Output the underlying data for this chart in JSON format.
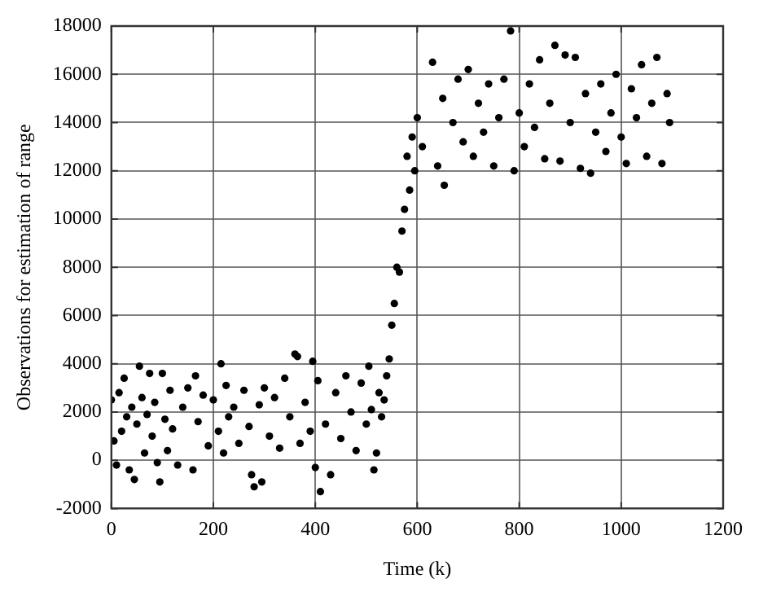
{
  "chart_data": {
    "type": "scatter",
    "xlabel": "Time (k)",
    "ylabel": "Observations for estimation of range",
    "xlim": [
      0,
      1200
    ],
    "xticks": [
      0,
      200,
      400,
      600,
      800,
      1000,
      1200
    ],
    "ylim": [
      -2000,
      18000
    ],
    "yticks": [
      -2000,
      0,
      2000,
      4000,
      6000,
      8000,
      10000,
      12000,
      14000,
      16000,
      18000
    ],
    "grid": true,
    "legend": false,
    "marker": "circle",
    "series": [
      {
        "color": "#000000",
        "x": [
          0,
          5,
          10,
          15,
          20,
          25,
          30,
          35,
          40,
          45,
          50,
          55,
          60,
          65,
          70,
          75,
          80,
          85,
          90,
          95,
          100,
          105,
          110,
          115,
          120,
          130,
          140,
          150,
          160,
          165,
          170,
          180,
          190,
          200,
          210,
          215,
          220,
          225,
          230,
          240,
          250,
          260,
          270,
          275,
          280,
          290,
          295,
          300,
          310,
          320,
          330,
          340,
          350,
          360,
          365,
          370,
          380,
          390,
          395,
          400,
          405,
          410,
          420,
          430,
          440,
          450,
          460,
          470,
          480,
          490,
          500,
          505,
          510,
          515,
          520,
          525,
          530,
          535,
          540,
          545,
          550,
          555,
          560,
          565,
          570,
          575,
          580,
          585,
          590,
          595,
          600,
          610,
          630,
          640,
          650,
          653,
          670,
          680,
          690,
          700,
          710,
          720,
          730,
          740,
          750,
          760,
          770,
          783,
          790,
          800,
          810,
          820,
          830,
          840,
          850,
          860,
          870,
          880,
          890,
          900,
          910,
          920,
          930,
          940,
          950,
          960,
          970,
          980,
          990,
          1000,
          1010,
          1020,
          1030,
          1040,
          1050,
          1060,
          1070,
          1080,
          1090,
          1095
        ],
        "values": [
          2500,
          800,
          -200,
          2800,
          1200,
          3400,
          1800,
          -400,
          2200,
          -800,
          1500,
          3900,
          2600,
          300,
          1900,
          3600,
          1000,
          2400,
          -100,
          -900,
          3600,
          1700,
          400,
          2900,
          1300,
          -200,
          2200,
          3000,
          -400,
          3500,
          1600,
          2700,
          600,
          2500,
          1200,
          4000,
          300,
          3100,
          1800,
          2200,
          700,
          2900,
          1400,
          -600,
          -1100,
          2300,
          -900,
          3000,
          1000,
          2600,
          500,
          3400,
          1800,
          4400,
          4300,
          700,
          2400,
          1200,
          4100,
          -300,
          3300,
          -1300,
          1500,
          -600,
          2800,
          900,
          3500,
          2000,
          400,
          3200,
          1500,
          3900,
          2100,
          -400,
          300,
          2800,
          1800,
          2500,
          3500,
          4200,
          5600,
          6500,
          8000,
          7800,
          9500,
          10400,
          12600,
          11200,
          13400,
          12000,
          14200,
          13000,
          16500,
          12200,
          15000,
          11400,
          14000,
          15800,
          13200,
          16200,
          12600,
          14800,
          13600,
          15600,
          12200,
          14200,
          15800,
          17800,
          12000,
          14400,
          13000,
          15600,
          13800,
          16600,
          12500,
          14800,
          17200,
          12400,
          16800,
          14000,
          16700,
          12100,
          15200,
          11900,
          13600,
          15600,
          12800,
          14400,
          16000,
          13400,
          12300,
          15400,
          14200,
          16400,
          12600,
          14800,
          16700,
          12300,
          15200,
          14000
        ]
      }
    ]
  }
}
